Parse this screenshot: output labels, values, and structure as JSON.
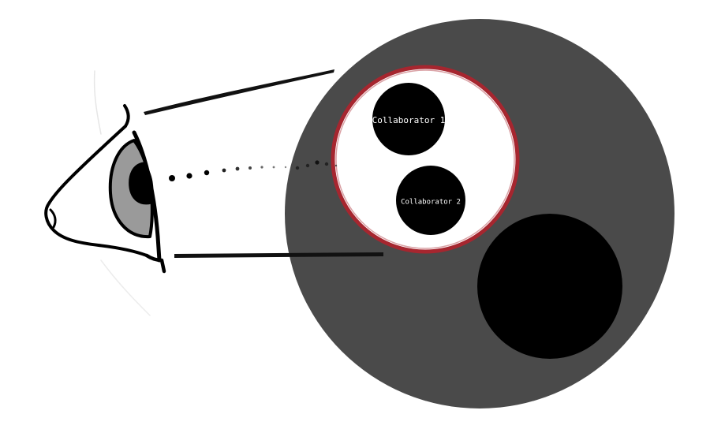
{
  "colors": {
    "background": "#ffffff",
    "outer_circle": "#4a4a4a",
    "lens_fill": "#ffffff",
    "lens_ring": "#a6262f",
    "dark_disc": "#000000",
    "eye_iris": "#9a9a9a",
    "ink": "#000000"
  },
  "icons": {
    "eye": "eye-icon",
    "sight_line": "dotted-sight-line"
  },
  "labels": {
    "collaborator_1": "Collaborator 1",
    "collaborator_2": "Collaborator 2"
  }
}
